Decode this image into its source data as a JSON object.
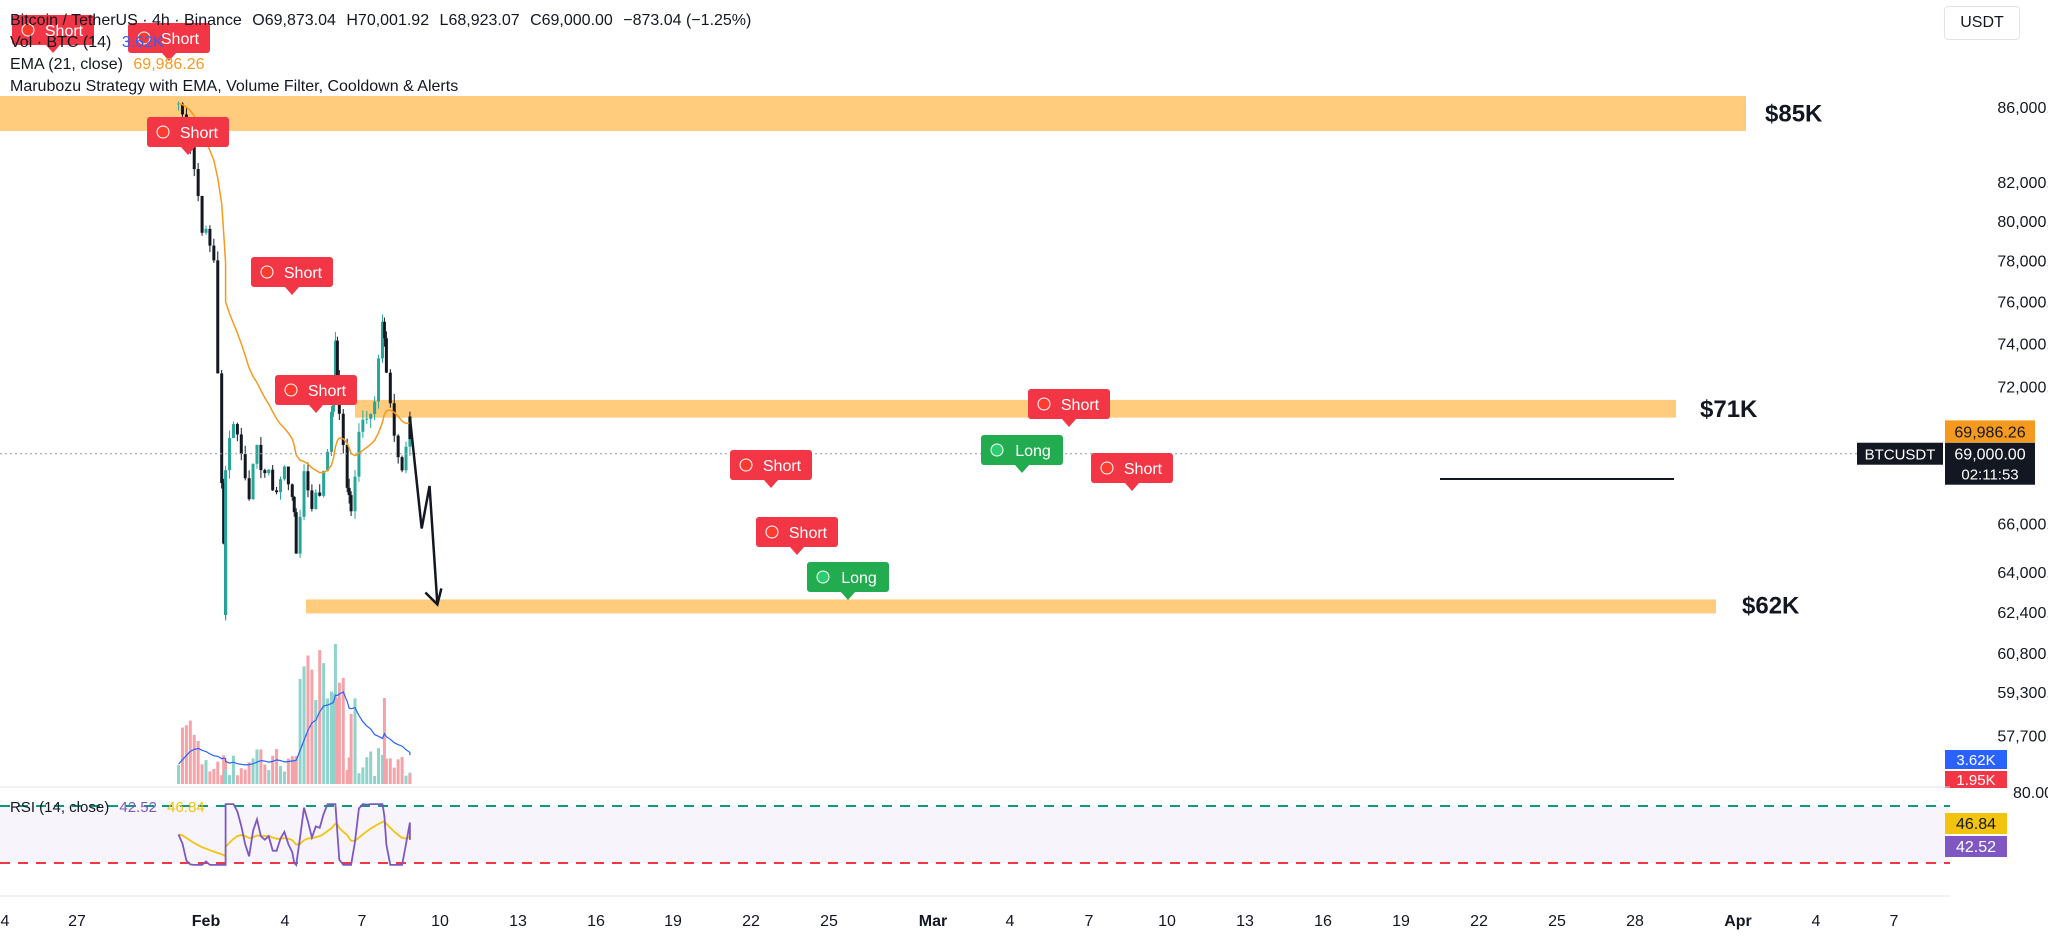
{
  "header": {
    "symbol": "Bitcoin / TetherUS · 4h · Binance",
    "open": "O69,873.04",
    "high": "H70,001.92",
    "low": "L68,923.07",
    "close": "C69,000.00",
    "change": "−873.04 (−1.25%)"
  },
  "legends": {
    "vol_label": "Vol · BTC (14)",
    "vol_value": "3.62K",
    "ema_label": "EMA (21, close)",
    "ema_value": "69,986.26",
    "strategy": "Marubozu Strategy with EMA, Volume Filter, Cooldown & Alerts",
    "rsi_label": "RSI (14, close)",
    "rsi_value": "42.52",
    "rsi_ma": "46.84"
  },
  "currency": "USDT",
  "colors": {
    "up": "#26a69a",
    "down": "#131722",
    "zone": "#ffc266",
    "ema": "#f59a1f",
    "vol_ma": "#2962ff",
    "rsi": "#7e57c2",
    "rsi_ma": "#f2c40f",
    "short_tag": "#f23645",
    "long_tag": "#22ab4f"
  },
  "chart_data": {
    "type": "candlestick",
    "price_axis": [
      "86,000.00",
      "82,000.00",
      "80,000.00",
      "78,000.00",
      "76,000.00",
      "74,000.00",
      "72,000.00",
      "66,000.00",
      "64,000.00",
      "62,400.00",
      "60,800.00",
      "59,300.00",
      "57,700.00"
    ],
    "price_axis_values": [
      86000,
      82000,
      80000,
      78000,
      76000,
      74000,
      72000,
      66000,
      64000,
      62400,
      60800,
      59300,
      57700
    ],
    "x_ticks": [
      "4",
      "27",
      "Feb",
      "4",
      "7",
      "10",
      "13",
      "16",
      "19",
      "22",
      "25",
      "Mar",
      "4",
      "7",
      "10",
      "13",
      "16",
      "19",
      "22",
      "25",
      "28",
      "Apr",
      "4",
      "7"
    ],
    "price_labels": {
      "ema": "69,986.26",
      "symbol": "BTCUSDT",
      "last": "69,000.00",
      "countdown": "02:11:53",
      "vol_ma": "3.62K",
      "vol": "1.95K"
    },
    "rsi_axis": [
      "80.00"
    ],
    "rsi_labels": [
      "46.84",
      "42.52"
    ],
    "zones": [
      {
        "label": "$85K",
        "low": 84700,
        "high": 86600
      },
      {
        "label": "$71K",
        "low": 70600,
        "high": 71400
      },
      {
        "label": "$62K",
        "low": 62400,
        "high": 62900
      }
    ],
    "signals": [
      {
        "text": "Short",
        "type": "short"
      },
      {
        "text": "Short",
        "type": "short"
      },
      {
        "text": "Short",
        "type": "short"
      },
      {
        "text": "Short",
        "type": "short"
      },
      {
        "text": "Short",
        "type": "short"
      },
      {
        "text": "Short",
        "type": "short"
      },
      {
        "text": "Short",
        "type": "short"
      },
      {
        "text": "Long",
        "type": "long"
      },
      {
        "text": "Long",
        "type": "long"
      },
      {
        "text": "Short",
        "type": "short"
      },
      {
        "text": "Short",
        "type": "short"
      }
    ],
    "path": [
      [
        "2024-01-25",
        86200
      ],
      [
        "2024-01-28",
        84200
      ],
      [
        "2024-01-31",
        79800
      ],
      [
        "2024-02-03",
        78100
      ],
      [
        "2024-02-05",
        67500
      ],
      [
        "2024-02-06",
        62600
      ],
      [
        "2024-02-06",
        68500
      ],
      [
        "2024-02-08",
        70600
      ],
      [
        "2024-02-10",
        69000
      ],
      [
        "2024-02-12",
        67400
      ],
      [
        "2024-02-14",
        69000
      ],
      [
        "2024-02-16",
        68200
      ],
      [
        "2024-02-19",
        67400
      ],
      [
        "2024-02-21",
        68300
      ],
      [
        "2024-02-23",
        67400
      ],
      [
        "2024-02-24",
        64800
      ],
      [
        "2024-02-26",
        68200
      ],
      [
        "2024-02-28",
        66900
      ],
      [
        "2024-03-01",
        67300
      ],
      [
        "2024-03-04",
        70500
      ],
      [
        "2024-03-05",
        73800
      ],
      [
        "2024-03-06",
        71000
      ],
      [
        "2024-03-08",
        67600
      ],
      [
        "2024-03-09",
        66400
      ],
      [
        "2024-03-11",
        70200
      ],
      [
        "2024-03-13",
        70900
      ],
      [
        "2024-03-15",
        71400
      ],
      [
        "2024-03-17",
        74900
      ],
      [
        "2024-03-18",
        72800
      ],
      [
        "2024-03-20",
        69800
      ],
      [
        "2024-03-22",
        68000
      ],
      [
        "2024-03-24",
        70700
      ],
      [
        "2024-03-24",
        69000
      ]
    ],
    "projection": [
      [
        "2024-03-24",
        70600
      ],
      [
        "2024-03-27",
        65800
      ],
      [
        "2024-03-29",
        67600
      ],
      [
        "2024-03-31",
        62700
      ]
    ]
  }
}
